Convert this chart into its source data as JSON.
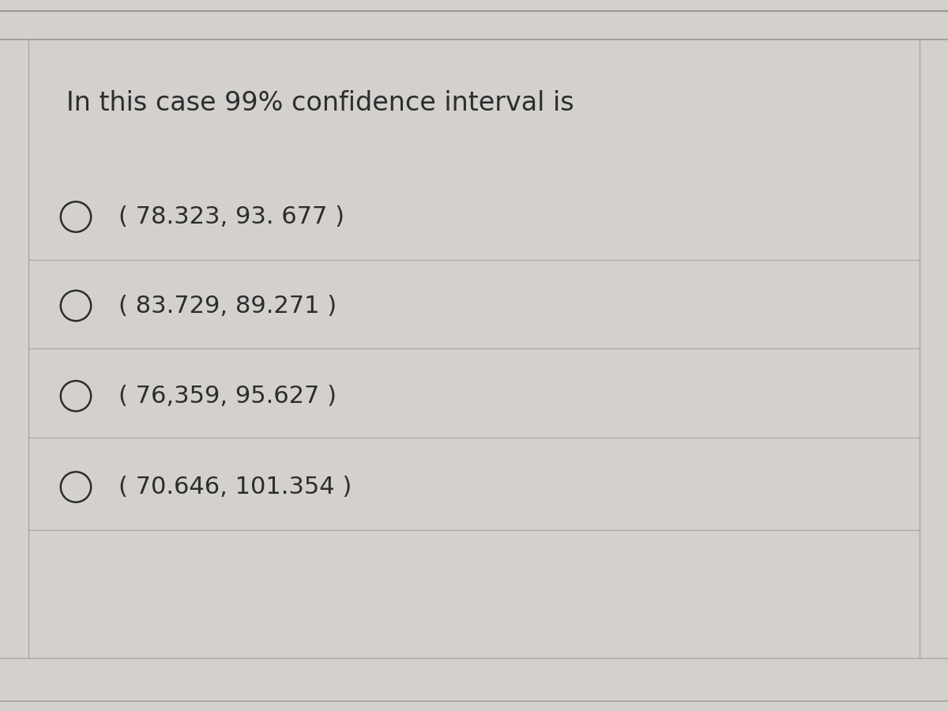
{
  "title": "In this case 99% confidence interval is",
  "options": [
    "( 78.323, 93. 677 )",
    "( 83.729, 89.271 )",
    "( 76,359, 95.627 )",
    "( 70.646, 101.354 )"
  ],
  "bg_color": "#d4d1cc",
  "line_color": "#aaa8a4",
  "title_color": "#2b2d2f",
  "option_color": "#2b2d2f",
  "title_fontsize": 24,
  "option_fontsize": 22,
  "top_border_color": "#999795",
  "bottom_border_color": "#c8c5c0"
}
